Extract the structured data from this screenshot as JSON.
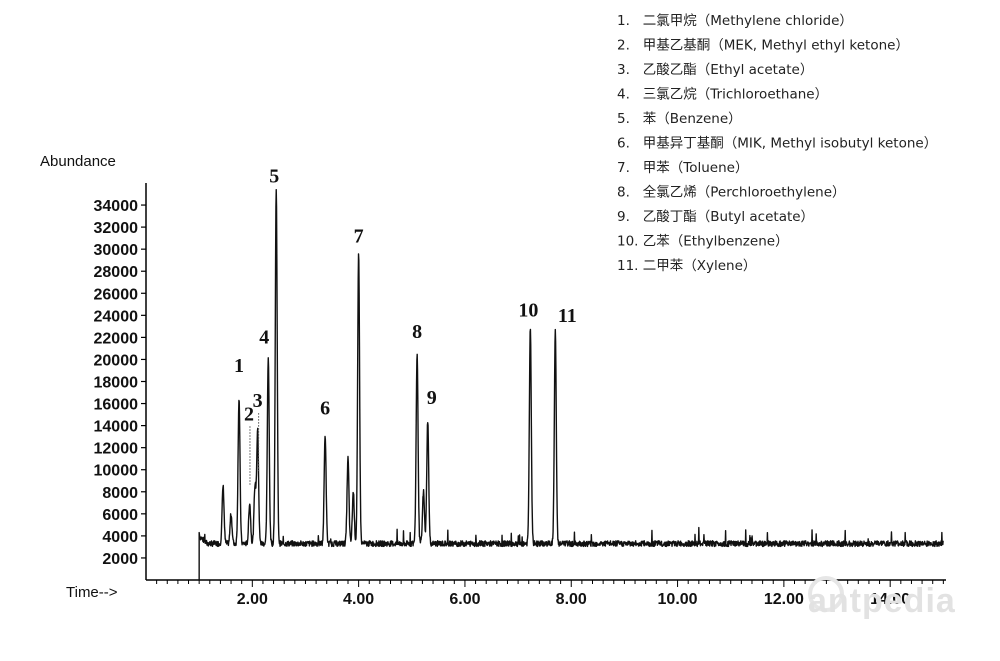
{
  "chart_data": {
    "type": "line",
    "title": "",
    "ylabel": "Abundance",
    "xlabel": "Time-->",
    "xlim": [
      0.0,
      15.05
    ],
    "ylim": [
      0,
      36000
    ],
    "yticks": [
      2000,
      4000,
      6000,
      8000,
      10000,
      12000,
      14000,
      16000,
      18000,
      20000,
      22000,
      24000,
      26000,
      28000,
      30000,
      32000,
      34000
    ],
    "ytick_labels": [
      "2000",
      "4000",
      "6000",
      "8000",
      "10000",
      "12000",
      "14000",
      "16000",
      "18000",
      "20000",
      "22000",
      "24000",
      "26000",
      "28000",
      "30000",
      "32000",
      "34000"
    ],
    "xticks": [
      2,
      4,
      6,
      8,
      10,
      12,
      14
    ],
    "xtick_labels": [
      "2.00",
      "4.00",
      "6.00",
      "8.00",
      "10.00",
      "12.00",
      "14.00"
    ],
    "baseline": 3300,
    "trace_start": 1.0,
    "trace_end": 15.0,
    "peaks": [
      {
        "label": "1",
        "rt": 1.75,
        "height": 16500
      },
      {
        "label": "2",
        "rt": 2.05,
        "height": 8500
      },
      {
        "label": "3",
        "rt": 2.1,
        "height": 13500
      },
      {
        "label": "4",
        "rt": 2.3,
        "height": 20000
      },
      {
        "label": "5",
        "rt": 2.45,
        "height": 35500
      },
      {
        "label": "6",
        "rt": 3.37,
        "height": 13200
      },
      {
        "label": "7",
        "rt": 4.0,
        "height": 29500
      },
      {
        "label": "8",
        "rt": 5.1,
        "height": 20500
      },
      {
        "label": "9",
        "rt": 5.3,
        "height": 14500
      },
      {
        "label": "10",
        "rt": 7.23,
        "height": 23000
      },
      {
        "label": "11",
        "rt": 7.7,
        "height": 22500
      }
    ],
    "minor_peaks": [
      {
        "rt": 1.45,
        "height": 8500
      },
      {
        "rt": 1.6,
        "height": 6000
      },
      {
        "rt": 1.95,
        "height": 7000
      },
      {
        "rt": 3.8,
        "height": 11000
      },
      {
        "rt": 3.9,
        "height": 8000
      },
      {
        "rt": 5.22,
        "height": 8000
      }
    ],
    "legend": [
      "1.   二氯甲烷（Methylene chloride）",
      "2.   甲基乙基酮（MEK, Methyl ethyl ketone）",
      "3.   乙酸乙酯（Ethyl acetate）",
      "4.   三氯乙烷（Trichloroethane）",
      "5.   苯（Benzene）",
      "6.   甲基异丁基酮（MIK, Methyl isobutyl ketone）",
      "7.   甲苯（Toluene）",
      "8.   全氯乙烯（Perchloroethylene）",
      "9.   乙酸丁酯（Butyl acetate）",
      "10. 乙苯（Ethylbenzene）",
      "11. 二甲苯（Xylene）"
    ],
    "legend_position": "top-right",
    "grid": false
  },
  "watermark": "antpedia",
  "colors": {
    "trace": "#111111",
    "axis": "#000000",
    "watermark": "#e2e2e2"
  }
}
